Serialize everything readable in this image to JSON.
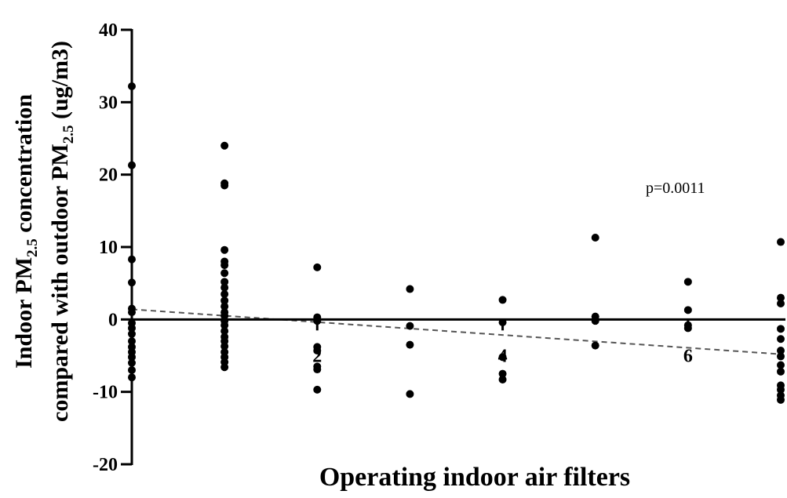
{
  "chart_data": {
    "type": "scatter",
    "xlabel": "Operating indoor air filters",
    "ylabel_parts": {
      "line1_a": "Indoor PM",
      "line1_sub": "2.5",
      "line1_b": " concentration",
      "line2_a": "compared with outdoor PM",
      "line2_sub": "2.5",
      "line2_b": " (ug/m3)"
    },
    "annotation": "p=0.0011",
    "xlim": [
      0,
      7
    ],
    "ylim": [
      -20,
      40
    ],
    "xticks": [
      2,
      4,
      6
    ],
    "yticks": [
      -20,
      -10,
      0,
      10,
      20,
      30,
      40
    ],
    "grid": false,
    "trendline": {
      "style": "dashed",
      "x": [
        0,
        7
      ],
      "y": [
        1.4,
        -4.8
      ]
    },
    "points": [
      [
        0,
        32.2
      ],
      [
        0,
        21.3
      ],
      [
        0,
        8.3
      ],
      [
        0,
        5.1
      ],
      [
        0,
        1.5
      ],
      [
        0,
        1.0
      ],
      [
        0,
        -0.5
      ],
      [
        0,
        -1.2
      ],
      [
        0,
        -2.0
      ],
      [
        0,
        -3.0
      ],
      [
        0,
        -3.8
      ],
      [
        0,
        -4.5
      ],
      [
        0,
        -5.2
      ],
      [
        0,
        -6.0
      ],
      [
        0,
        -7.0
      ],
      [
        0,
        -8.0
      ],
      [
        1,
        24.0
      ],
      [
        1,
        18.8
      ],
      [
        1,
        18.5
      ],
      [
        1,
        9.6
      ],
      [
        1,
        8.0
      ],
      [
        1,
        7.5
      ],
      [
        1,
        6.4
      ],
      [
        1,
        5.2
      ],
      [
        1,
        4.4
      ],
      [
        1,
        3.5
      ],
      [
        1,
        2.6
      ],
      [
        1,
        1.8
      ],
      [
        1,
        1.0
      ],
      [
        1,
        0.5
      ],
      [
        1,
        -0.2
      ],
      [
        1,
        -0.8
      ],
      [
        1,
        -1.6
      ],
      [
        1,
        -2.4
      ],
      [
        1,
        -3.0
      ],
      [
        1,
        -3.7
      ],
      [
        1,
        -4.5
      ],
      [
        1,
        -5.2
      ],
      [
        1,
        -5.9
      ],
      [
        1,
        -6.6
      ],
      [
        2,
        7.2
      ],
      [
        2,
        0.3
      ],
      [
        2,
        -0.2
      ],
      [
        2,
        -3.8
      ],
      [
        2,
        -4.3
      ],
      [
        2,
        -6.5
      ],
      [
        2,
        -6.9
      ],
      [
        2,
        -9.7
      ],
      [
        3,
        4.2
      ],
      [
        3,
        -0.9
      ],
      [
        3,
        -3.5
      ],
      [
        3,
        -10.3
      ],
      [
        4,
        2.7
      ],
      [
        4,
        -0.4
      ],
      [
        4,
        -5.2
      ],
      [
        4,
        -7.5
      ],
      [
        4,
        -8.3
      ],
      [
        5,
        11.3
      ],
      [
        5,
        0.4
      ],
      [
        5,
        -0.2
      ],
      [
        5,
        -3.6
      ],
      [
        6,
        5.2
      ],
      [
        6,
        1.3
      ],
      [
        6,
        -0.8
      ],
      [
        6,
        -1.2
      ],
      [
        7,
        10.7
      ],
      [
        7,
        3.0
      ],
      [
        7,
        2.2
      ],
      [
        7,
        -1.3
      ],
      [
        7,
        -2.7
      ],
      [
        7,
        -4.3
      ],
      [
        7,
        -5.1
      ],
      [
        7,
        -6.3
      ],
      [
        7,
        -7.2
      ],
      [
        7,
        -9.1
      ],
      [
        7,
        -9.7
      ],
      [
        7,
        -10.5
      ],
      [
        7,
        -11.1
      ]
    ]
  }
}
